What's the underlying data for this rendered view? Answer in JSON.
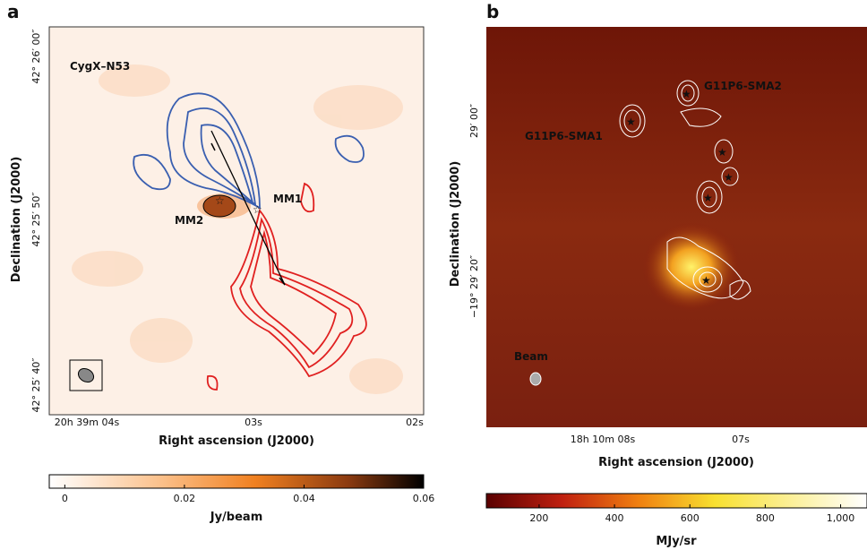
{
  "panels": [
    {
      "label": "a",
      "name": "CygX–N53",
      "x_axis_label": "Right ascension (J2000)",
      "y_axis_label": "Declination (J2000)",
      "x_ticks": [
        "20h 39m 04s",
        "03s",
        "02s"
      ],
      "y_ticks": [
        "42° 26′ 00″",
        "42° 25′ 50″",
        "42° 25′ 40″"
      ],
      "annotations": [
        "MM1",
        "MM2"
      ],
      "colorbar": {
        "label": "Jy/beam",
        "range": [
          -0.0026,
          0.06
        ],
        "ticks": [
          0,
          0.02,
          0.04,
          0.06
        ]
      }
    },
    {
      "label": "b",
      "x_axis_label": "Right ascension (J2000)",
      "y_axis_label": "Declination (J2000)",
      "x_ticks": [
        "18h 10m 08s",
        "07s"
      ],
      "y_ticks": [
        "29′ 00″",
        "−19° 29′ 20″"
      ],
      "annotations": [
        "G11P6-SMA1",
        "G11P6-SMA2",
        "Beam"
      ],
      "colorbar": {
        "label": "MJy/sr",
        "range": [
          60,
          1070
        ],
        "ticks": [
          200,
          400,
          600,
          800,
          {
            "value": 1000,
            "label": "1,000"
          }
        ]
      }
    }
  ]
}
